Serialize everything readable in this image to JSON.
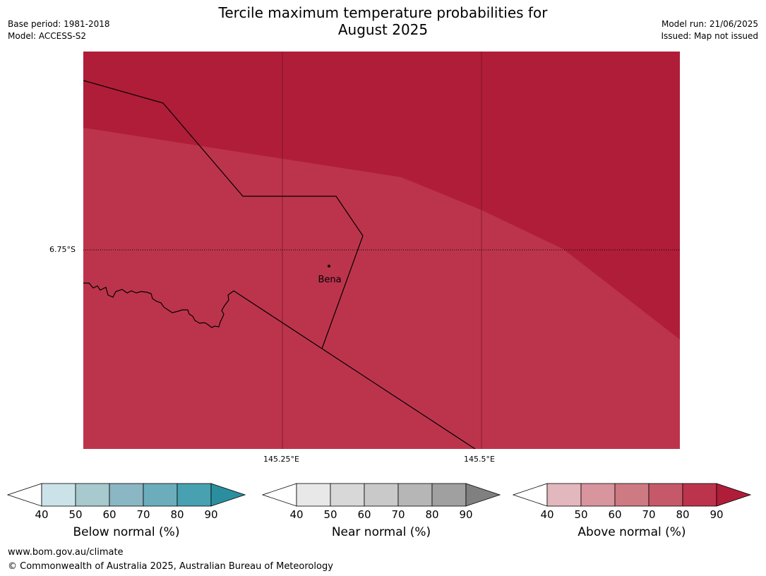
{
  "header": {
    "title_line1": "Tercile maximum temperature probabilities for",
    "title_line2": "August 2025",
    "base_period": "Base period: 1981-2018",
    "model": "Model: ACCESS-S2",
    "model_run": "Model run: 21/06/2025",
    "issued": "Issued: Map not issued"
  },
  "map": {
    "fill_colors": {
      "above_90": "#b01d39",
      "above_80": "#bc344c"
    },
    "latitude_labels": [
      "6.75°S"
    ],
    "longitude_labels": [
      "145.25°E",
      "145.5°E"
    ],
    "place_label": "Bena"
  },
  "colorbars": [
    {
      "title": "Below normal (%)",
      "ticks": [
        "40",
        "50",
        "60",
        "70",
        "80",
        "90"
      ],
      "colors": [
        "#ffffff",
        "#cbe3e8",
        "#a8c9ce",
        "#8bb6c3",
        "#6cadbb",
        "#47a1b0",
        "#2b8e9f"
      ]
    },
    {
      "title": "Near normal (%)",
      "ticks": [
        "40",
        "50",
        "60",
        "70",
        "80",
        "90"
      ],
      "colors": [
        "#ffffff",
        "#e8e8e8",
        "#d8d8d8",
        "#c9c9c9",
        "#b6b6b6",
        "#a0a0a0",
        "#808080"
      ]
    },
    {
      "title": "Above normal (%)",
      "ticks": [
        "40",
        "50",
        "60",
        "70",
        "80",
        "90"
      ],
      "colors": [
        "#ffffff",
        "#e2b7bd",
        "#d8959e",
        "#cd7a83",
        "#c5596a",
        "#bc344c",
        "#b01d39"
      ]
    }
  ],
  "footer": {
    "url": "www.bom.gov.au/climate",
    "copyright": "© Commonwealth of Australia 2025, Australian Bureau of Meteorology"
  }
}
